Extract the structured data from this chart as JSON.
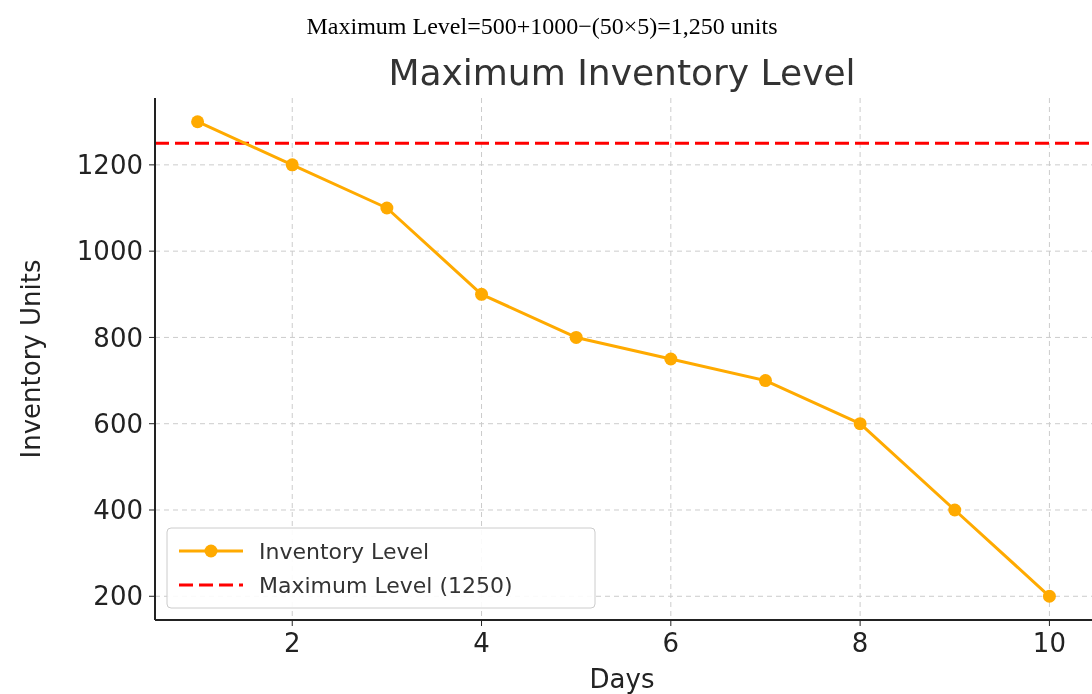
{
  "chart_data": {
    "type": "line",
    "title": "Maximum Inventory Level",
    "xlabel": "Days",
    "ylabel": "Inventory Units",
    "annotations": [
      "Maximum Level=500+1000−(50×5)=1,250 units"
    ],
    "x": [
      1,
      2,
      3,
      4,
      5,
      6,
      7,
      8,
      9,
      10
    ],
    "series": [
      {
        "name": "Inventory Level",
        "color": "#ffaa00",
        "values": [
          1300,
          1200,
          1100,
          900,
          800,
          750,
          700,
          600,
          400,
          200
        ]
      }
    ],
    "ref_lines": [
      {
        "axis": "y",
        "value": 1250,
        "label": "Maximum Level (1250)",
        "color": "#ff0000",
        "line_style": "dashed"
      }
    ],
    "xlim": [
      0.55,
      10.45
    ],
    "ylim": [
      145,
      1355
    ],
    "xticks": [
      2,
      4,
      6,
      8,
      10
    ],
    "yticks": [
      200,
      400,
      600,
      800,
      1000,
      1200
    ],
    "grid": true,
    "legend": "bottom left",
    "marker": "circle",
    "line_style": "solid"
  }
}
